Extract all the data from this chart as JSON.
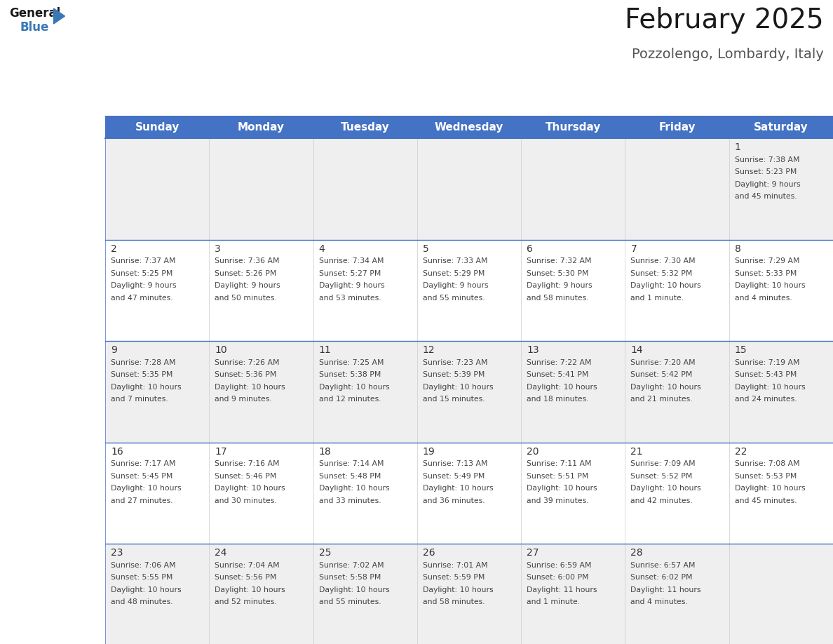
{
  "title": "February 2025",
  "subtitle": "Pozzolengo, Lombardy, Italy",
  "header_bg": "#4472C4",
  "header_text": "#FFFFFF",
  "day_names": [
    "Sunday",
    "Monday",
    "Tuesday",
    "Wednesday",
    "Thursday",
    "Friday",
    "Saturday"
  ],
  "cell_bg_light": "#EFEFEF",
  "cell_bg_white": "#FFFFFF",
  "cell_border": "#4472C4",
  "text_color": "#444444",
  "number_color": "#333333",
  "title_color": "#1a1a1a",
  "subtitle_color": "#555555",
  "header_font_size": 11,
  "day_number_font_size": 10,
  "info_font_size": 7.8,
  "title_font_size": 28,
  "subtitle_font_size": 14,
  "days_data": [
    {
      "day": 1,
      "col": 6,
      "row": 0,
      "sunrise": "7:38 AM",
      "sunset": "5:23 PM",
      "daylight_line1": "Daylight: 9 hours",
      "daylight_line2": "and 45 minutes."
    },
    {
      "day": 2,
      "col": 0,
      "row": 1,
      "sunrise": "7:37 AM",
      "sunset": "5:25 PM",
      "daylight_line1": "Daylight: 9 hours",
      "daylight_line2": "and 47 minutes."
    },
    {
      "day": 3,
      "col": 1,
      "row": 1,
      "sunrise": "7:36 AM",
      "sunset": "5:26 PM",
      "daylight_line1": "Daylight: 9 hours",
      "daylight_line2": "and 50 minutes."
    },
    {
      "day": 4,
      "col": 2,
      "row": 1,
      "sunrise": "7:34 AM",
      "sunset": "5:27 PM",
      "daylight_line1": "Daylight: 9 hours",
      "daylight_line2": "and 53 minutes."
    },
    {
      "day": 5,
      "col": 3,
      "row": 1,
      "sunrise": "7:33 AM",
      "sunset": "5:29 PM",
      "daylight_line1": "Daylight: 9 hours",
      "daylight_line2": "and 55 minutes."
    },
    {
      "day": 6,
      "col": 4,
      "row": 1,
      "sunrise": "7:32 AM",
      "sunset": "5:30 PM",
      "daylight_line1": "Daylight: 9 hours",
      "daylight_line2": "and 58 minutes."
    },
    {
      "day": 7,
      "col": 5,
      "row": 1,
      "sunrise": "7:30 AM",
      "sunset": "5:32 PM",
      "daylight_line1": "Daylight: 10 hours",
      "daylight_line2": "and 1 minute."
    },
    {
      "day": 8,
      "col": 6,
      "row": 1,
      "sunrise": "7:29 AM",
      "sunset": "5:33 PM",
      "daylight_line1": "Daylight: 10 hours",
      "daylight_line2": "and 4 minutes."
    },
    {
      "day": 9,
      "col": 0,
      "row": 2,
      "sunrise": "7:28 AM",
      "sunset": "5:35 PM",
      "daylight_line1": "Daylight: 10 hours",
      "daylight_line2": "and 7 minutes."
    },
    {
      "day": 10,
      "col": 1,
      "row": 2,
      "sunrise": "7:26 AM",
      "sunset": "5:36 PM",
      "daylight_line1": "Daylight: 10 hours",
      "daylight_line2": "and 9 minutes."
    },
    {
      "day": 11,
      "col": 2,
      "row": 2,
      "sunrise": "7:25 AM",
      "sunset": "5:38 PM",
      "daylight_line1": "Daylight: 10 hours",
      "daylight_line2": "and 12 minutes."
    },
    {
      "day": 12,
      "col": 3,
      "row": 2,
      "sunrise": "7:23 AM",
      "sunset": "5:39 PM",
      "daylight_line1": "Daylight: 10 hours",
      "daylight_line2": "and 15 minutes."
    },
    {
      "day": 13,
      "col": 4,
      "row": 2,
      "sunrise": "7:22 AM",
      "sunset": "5:41 PM",
      "daylight_line1": "Daylight: 10 hours",
      "daylight_line2": "and 18 minutes."
    },
    {
      "day": 14,
      "col": 5,
      "row": 2,
      "sunrise": "7:20 AM",
      "sunset": "5:42 PM",
      "daylight_line1": "Daylight: 10 hours",
      "daylight_line2": "and 21 minutes."
    },
    {
      "day": 15,
      "col": 6,
      "row": 2,
      "sunrise": "7:19 AM",
      "sunset": "5:43 PM",
      "daylight_line1": "Daylight: 10 hours",
      "daylight_line2": "and 24 minutes."
    },
    {
      "day": 16,
      "col": 0,
      "row": 3,
      "sunrise": "7:17 AM",
      "sunset": "5:45 PM",
      "daylight_line1": "Daylight: 10 hours",
      "daylight_line2": "and 27 minutes."
    },
    {
      "day": 17,
      "col": 1,
      "row": 3,
      "sunrise": "7:16 AM",
      "sunset": "5:46 PM",
      "daylight_line1": "Daylight: 10 hours",
      "daylight_line2": "and 30 minutes."
    },
    {
      "day": 18,
      "col": 2,
      "row": 3,
      "sunrise": "7:14 AM",
      "sunset": "5:48 PM",
      "daylight_line1": "Daylight: 10 hours",
      "daylight_line2": "and 33 minutes."
    },
    {
      "day": 19,
      "col": 3,
      "row": 3,
      "sunrise": "7:13 AM",
      "sunset": "5:49 PM",
      "daylight_line1": "Daylight: 10 hours",
      "daylight_line2": "and 36 minutes."
    },
    {
      "day": 20,
      "col": 4,
      "row": 3,
      "sunrise": "7:11 AM",
      "sunset": "5:51 PM",
      "daylight_line1": "Daylight: 10 hours",
      "daylight_line2": "and 39 minutes."
    },
    {
      "day": 21,
      "col": 5,
      "row": 3,
      "sunrise": "7:09 AM",
      "sunset": "5:52 PM",
      "daylight_line1": "Daylight: 10 hours",
      "daylight_line2": "and 42 minutes."
    },
    {
      "day": 22,
      "col": 6,
      "row": 3,
      "sunrise": "7:08 AM",
      "sunset": "5:53 PM",
      "daylight_line1": "Daylight: 10 hours",
      "daylight_line2": "and 45 minutes."
    },
    {
      "day": 23,
      "col": 0,
      "row": 4,
      "sunrise": "7:06 AM",
      "sunset": "5:55 PM",
      "daylight_line1": "Daylight: 10 hours",
      "daylight_line2": "and 48 minutes."
    },
    {
      "day": 24,
      "col": 1,
      "row": 4,
      "sunrise": "7:04 AM",
      "sunset": "5:56 PM",
      "daylight_line1": "Daylight: 10 hours",
      "daylight_line2": "and 52 minutes."
    },
    {
      "day": 25,
      "col": 2,
      "row": 4,
      "sunrise": "7:02 AM",
      "sunset": "5:58 PM",
      "daylight_line1": "Daylight: 10 hours",
      "daylight_line2": "and 55 minutes."
    },
    {
      "day": 26,
      "col": 3,
      "row": 4,
      "sunrise": "7:01 AM",
      "sunset": "5:59 PM",
      "daylight_line1": "Daylight: 10 hours",
      "daylight_line2": "and 58 minutes."
    },
    {
      "day": 27,
      "col": 4,
      "row": 4,
      "sunrise": "6:59 AM",
      "sunset": "6:00 PM",
      "daylight_line1": "Daylight: 11 hours",
      "daylight_line2": "and 1 minute."
    },
    {
      "day": 28,
      "col": 5,
      "row": 4,
      "sunrise": "6:57 AM",
      "sunset": "6:02 PM",
      "daylight_line1": "Daylight: 11 hours",
      "daylight_line2": "and 4 minutes."
    }
  ],
  "num_rows": 5,
  "num_cols": 7,
  "logo_general_color": "#1a1a1a",
  "logo_blue_color": "#3a78b5"
}
